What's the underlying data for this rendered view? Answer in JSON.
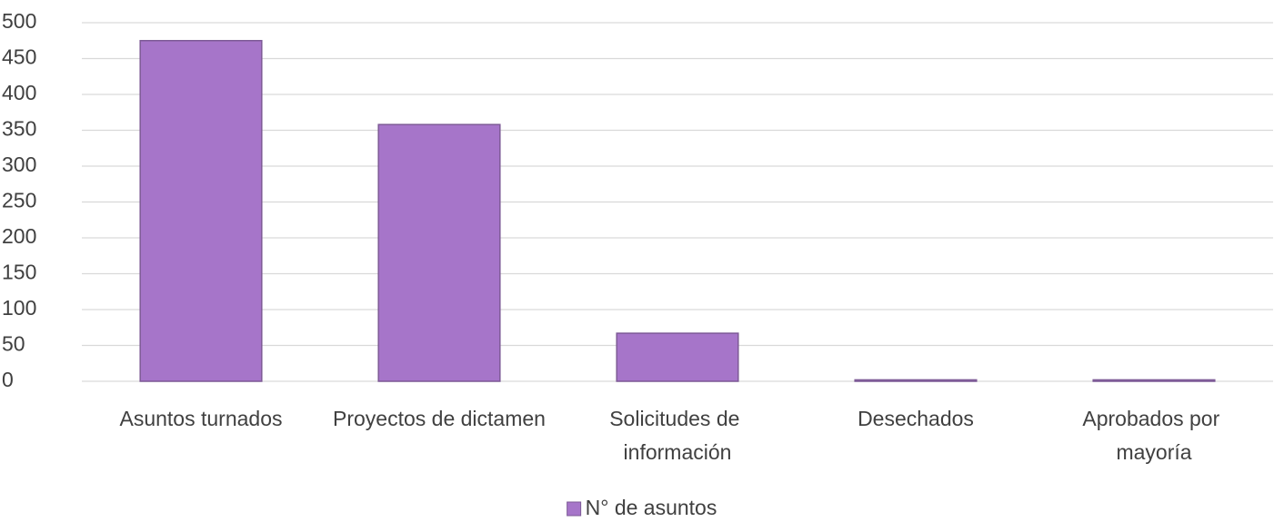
{
  "chart_data": {
    "type": "bar",
    "categories": [
      "Asuntos turnados",
      "Proyectos de dictamen",
      "Solicitudes de información",
      "Desechados",
      "Aprobados por mayoría"
    ],
    "series": [
      {
        "name": "N° de asuntos",
        "color": "#a675c9",
        "values": [
          475,
          358,
          67,
          2,
          2
        ]
      }
    ],
    "ylim": [
      0,
      500
    ],
    "yticks": [
      0,
      50,
      100,
      150,
      200,
      250,
      300,
      350,
      400,
      450,
      500
    ],
    "grid": true,
    "legend": "bottom"
  }
}
